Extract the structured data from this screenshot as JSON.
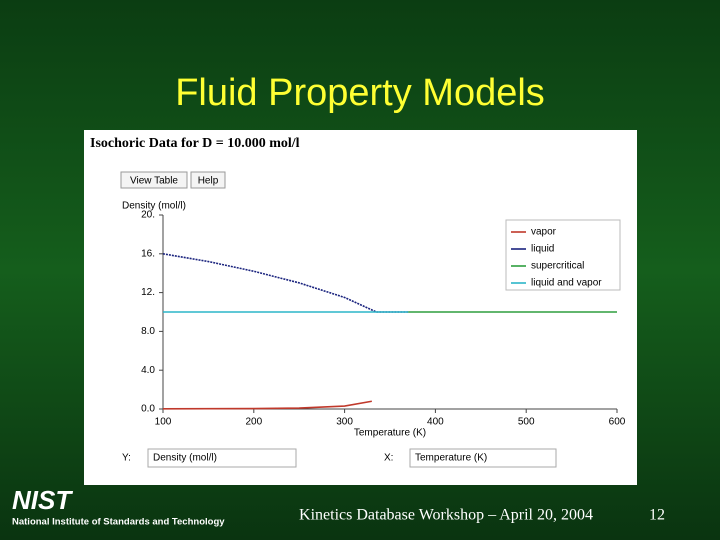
{
  "slide": {
    "title": "Fluid Property Models",
    "logo": "NIST",
    "institution": "National Institute of Standards and Technology",
    "footer": "Kinetics Database Workshop – April 20, 2004",
    "page": "12"
  },
  "chart_data": {
    "type": "line",
    "title": "Isochoric Data for D = 10.000 mol/l",
    "buttons": [
      "View Table",
      "Help"
    ],
    "y_label": "Density (mol/l)",
    "x_label": "Temperature (K)",
    "selectors": [
      {
        "axis": "Y:",
        "value": "Density (mol/l)"
      },
      {
        "axis": "X:",
        "value": "Temperature (K)"
      }
    ],
    "xlim": [
      100,
      600
    ],
    "ylim": [
      0,
      20
    ],
    "xticks": [
      100,
      200,
      300,
      400,
      500,
      600
    ],
    "yticks": [
      {
        "value": 0,
        "label": "0.0"
      },
      {
        "value": 4,
        "label": "4.0"
      },
      {
        "value": 8,
        "label": "8.0"
      },
      {
        "value": 12,
        "label": "12."
      },
      {
        "value": 16,
        "label": "16."
      },
      {
        "value": 20,
        "label": "20."
      }
    ],
    "series": [
      {
        "name": "vapor",
        "color": "#c0392b",
        "x": [
          100,
          200,
          250,
          300,
          330
        ],
        "values": [
          0.02,
          0.05,
          0.1,
          0.3,
          0.8
        ]
      },
      {
        "name": "liquid",
        "color": "#1a237e",
        "x": [
          100,
          150,
          200,
          250,
          300,
          335,
          370
        ],
        "values": [
          16.0,
          15.2,
          14.2,
          13.0,
          11.5,
          10.0,
          10.0
        ]
      },
      {
        "name": "supercritical",
        "color": "#2e9e3e",
        "x": [
          370,
          600
        ],
        "values": [
          10.0,
          10.0
        ]
      },
      {
        "name": "liquid and vapor",
        "color": "#2bb5c8",
        "x": [
          100,
          370
        ],
        "values": [
          10.0,
          10.0
        ]
      }
    ]
  }
}
